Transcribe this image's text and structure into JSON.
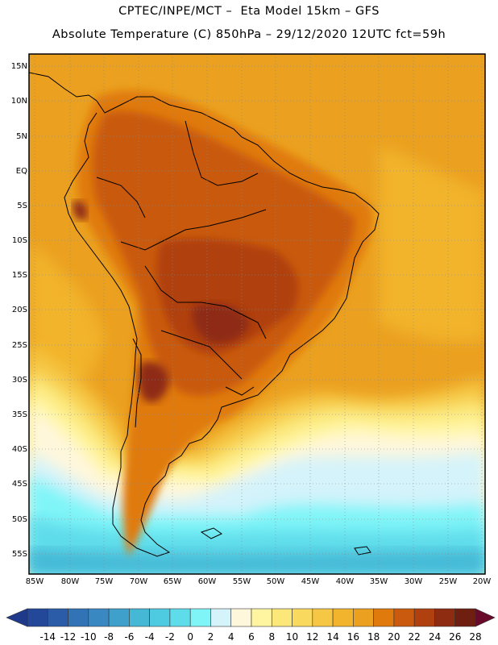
{
  "header": {
    "line1": "CPTEC/INPE/MCT –  Eta Model 15km – GFS",
    "line2": "Absolute Temperature (C) 850hPa – 29/12/2020 12UTC fct=59h"
  },
  "axes": {
    "lat_labels": [
      "15N",
      "10N",
      "5N",
      "EQ",
      "5S",
      "10S",
      "15S",
      "20S",
      "25S",
      "30S",
      "35S",
      "40S",
      "45S",
      "50S",
      "55S"
    ],
    "lon_labels": [
      "85W",
      "80W",
      "75W",
      "70W",
      "65W",
      "60W",
      "55W",
      "50W",
      "45W",
      "40W",
      "35W",
      "30W",
      "25W",
      "20W"
    ]
  },
  "colorbar": {
    "labels": [
      "-14",
      "-12",
      "-10",
      "-8",
      "-6",
      "-4",
      "-2",
      "0",
      "2",
      "4",
      "6",
      "8",
      "10",
      "12",
      "14",
      "16",
      "18",
      "20",
      "22",
      "24",
      "26",
      "28"
    ],
    "colors": [
      "#1f3a8a",
      "#23489a",
      "#2a5ca8",
      "#3273b6",
      "#3a88c2",
      "#3fa0cc",
      "#45b8d6",
      "#4ecbe0",
      "#5fdcea",
      "#7ff5f8",
      "#d4f3fb",
      "#fff7dc",
      "#fff5a0",
      "#fbe77a",
      "#f9d95e",
      "#f6c744",
      "#f2b42c",
      "#eba01f",
      "#e07a0d",
      "#c95a0e",
      "#b0400f",
      "#8e2c12",
      "#6e1f10",
      "#6a0a2a"
    ]
  }
}
